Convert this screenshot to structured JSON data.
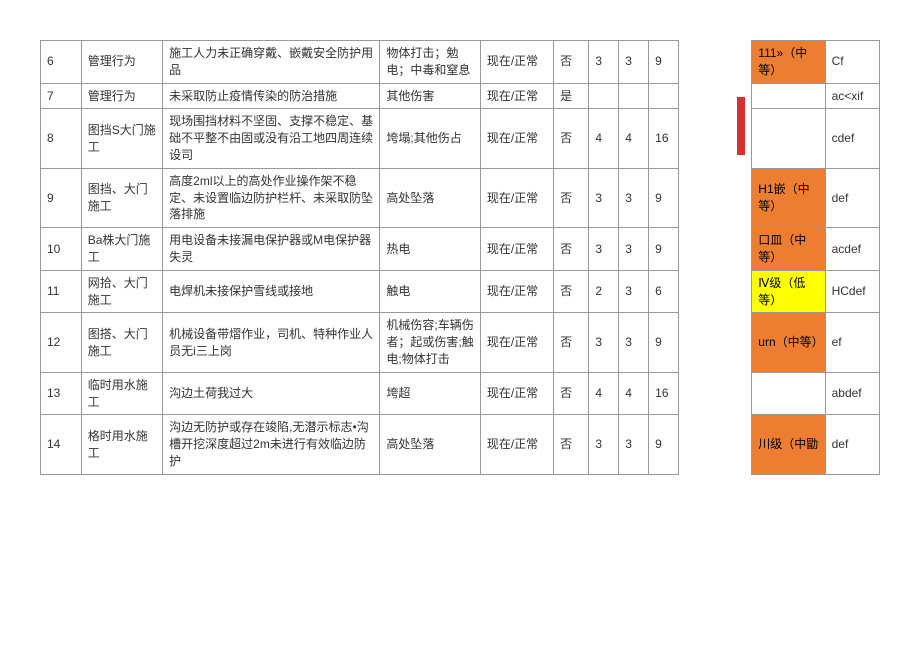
{
  "rows": [
    {
      "idx": "6",
      "cat": "管理行为",
      "desc": "施工人力未正确穿戴、嵌戴安全防护用品",
      "haz": "物体打击；勉电；中毒和窒息",
      "state": "现在/正常",
      "flag": "否",
      "n1": "3",
      "n2": "3",
      "n3": "9",
      "lvl": "111»（中等）",
      "lvlClass": "lvl-orange",
      "code": "Cf"
    },
    {
      "idx": "7",
      "cat": "管理行为",
      "desc": "未采取防止疫情传染的防治措施",
      "haz": "其他伤害",
      "state": "现在/正常",
      "flag": "是",
      "n1": "",
      "n2": "",
      "n3": "",
      "lvl": "",
      "lvlClass": "",
      "code": "ac<xif",
      "redbar": true,
      "mergeGap": true
    },
    {
      "idx": "8",
      "cat": "图挡S大门施工",
      "desc": "现场围挡材料不坚固、支撑不稳定、基础不平整不由固或没有沿工地四周连续设司",
      "haz": "垮塌;其他伤占",
      "state": "现在/正常",
      "flag": "否",
      "n1": "4",
      "n2": "4",
      "n3": "16",
      "lvl": "",
      "lvlClass": "",
      "code": "cdef",
      "redbarFollow": true
    },
    {
      "idx": "9",
      "cat": "图挡、大门施工",
      "desc": "高度2ml以上的高处作业操作架不稳定、未设置临边防护栏杆、未采取防坠落排施",
      "haz": "高处坠落",
      "state": "现在/正常",
      "flag": "否",
      "n1": "3",
      "n2": "3",
      "n3": "9",
      "lvl": "H1嵌（中等）",
      "lvlClass": "lvl-orange",
      "code": "def"
    },
    {
      "idx": "10",
      "cat": "Ba株大门施工",
      "desc": "用电设备未接漏电保护器或M电保护器失灵",
      "haz": "热电",
      "state": "现在/正常",
      "flag": "否",
      "n1": "3",
      "n2": "3",
      "n3": "9",
      "lvl": "口皿（中等）",
      "lvlClass": "lvl-orange",
      "code": "acdef"
    },
    {
      "idx": "11",
      "cat": "网拾、大门施工",
      "desc": "电焊机未接保护雪线或接地",
      "haz": "触电",
      "state": "现在/正常",
      "flag": "否",
      "n1": "2",
      "n2": "3",
      "n3": "6",
      "lvl": "Ⅳ级（低等）",
      "lvlClass": "lvl-yellow",
      "code": "HCdef"
    },
    {
      "idx": "12",
      "cat": "图搭、大门施工",
      "desc": "机械设备带熠作业，司机、特种作业人员无i三上岗",
      "haz": "机械伤容;车辆伤者；起或伤害;触电;物体打击",
      "state": "现在/正常",
      "flag": "否",
      "n1": "3",
      "n2": "3",
      "n3": "9",
      "lvl": "urn（中等）",
      "lvlClass": "lvl-orange",
      "code": "ef"
    },
    {
      "idx": "13",
      "cat": "临时用水施工",
      "desc": "沟边土荷我过大",
      "haz": "垮超",
      "state": "现在/正常",
      "flag": "否",
      "n1": "4",
      "n2": "4",
      "n3": "16",
      "lvl": "",
      "lvlClass": "",
      "code": "abdef"
    },
    {
      "idx": "14",
      "cat": "格时用水施工",
      "desc": "沟边无防护或存在竣陷,无潜示标志•沟槽开挖深度超过2m未进行有效临边防护",
      "haz": "高处坠落",
      "state": "现在/正常",
      "flag": "否",
      "n1": "3",
      "n2": "3",
      "n3": "9",
      "lvl": "川级（中勖",
      "lvlClass": "lvl-orange",
      "code": "def"
    }
  ]
}
